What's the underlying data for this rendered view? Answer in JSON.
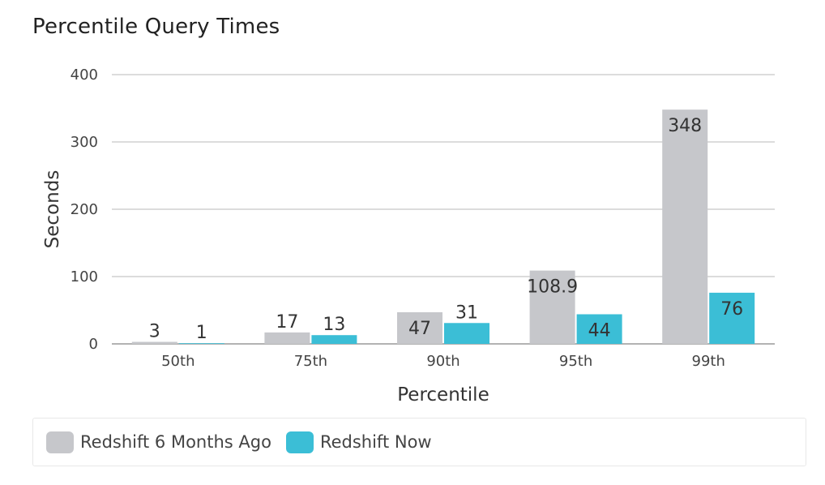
{
  "chart_data": {
    "type": "bar",
    "title": "Percentile Query Times",
    "xlabel": "Percentile",
    "ylabel": "Seconds",
    "ylim": [
      0,
      400
    ],
    "yticks": [
      0,
      100,
      200,
      300,
      400
    ],
    "grid": true,
    "legend_position": "bottom",
    "categories": [
      "50th",
      "75th",
      "90th",
      "95th",
      "99th"
    ],
    "series": [
      {
        "name": "Redshift 6 Months Ago",
        "color": "#c6c7cb",
        "values": [
          3,
          17,
          47,
          108.9,
          348
        ],
        "labels": [
          "3",
          "17",
          "47",
          "108.9",
          "348"
        ]
      },
      {
        "name": "Redshift Now",
        "color": "#3bbed6",
        "values": [
          1,
          13,
          31,
          44,
          76
        ],
        "labels": [
          "1",
          "13",
          "31",
          "44",
          "76"
        ]
      }
    ]
  }
}
